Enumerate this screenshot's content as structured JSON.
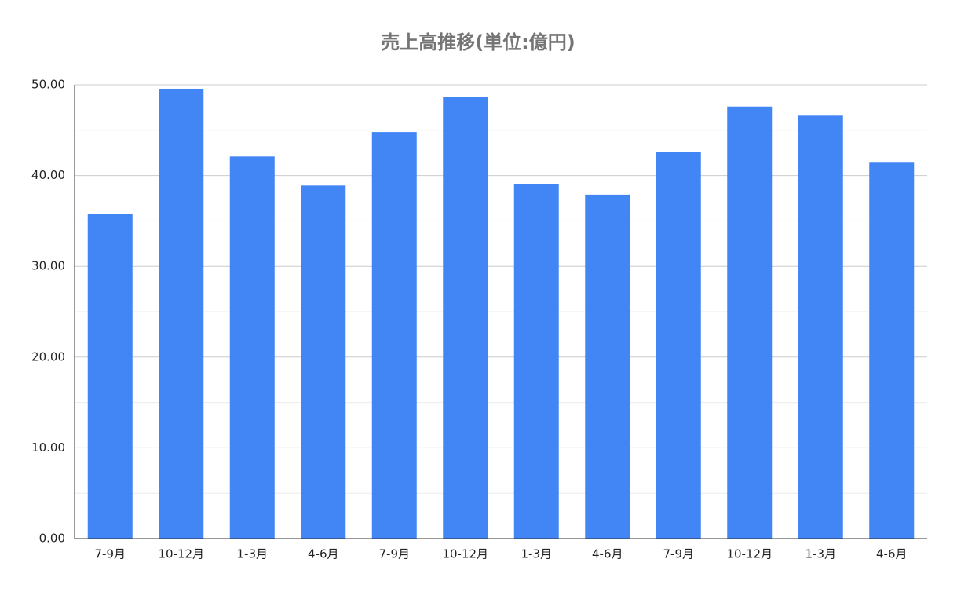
{
  "chart_data": {
    "type": "bar",
    "title": "売上高推移(単位:億円)",
    "categories": [
      "7-9月",
      "10-12月",
      "1-3月",
      "4-6月",
      "7-9月",
      "10-12月",
      "1-3月",
      "4-6月",
      "7-9月",
      "10-12月",
      "1-3月",
      "4-6月"
    ],
    "values": [
      35.8,
      49.57,
      42.1,
      38.9,
      44.8,
      48.7,
      39.1,
      37.9,
      42.6,
      47.6,
      46.6,
      41.5
    ],
    "color": "#4285f4",
    "ylim": [
      0,
      50
    ],
    "yticks": [
      {
        "value": 0,
        "label": "0.00"
      },
      {
        "value": 10,
        "label": "10.00"
      },
      {
        "value": 20,
        "label": "20.00"
      },
      {
        "value": 30,
        "label": "30.00"
      },
      {
        "value": 40,
        "label": "40.00"
      },
      {
        "value": 50,
        "label": "50.00"
      }
    ],
    "minor_yticks": [
      5,
      15,
      25,
      35,
      45
    ],
    "grid": true
  }
}
